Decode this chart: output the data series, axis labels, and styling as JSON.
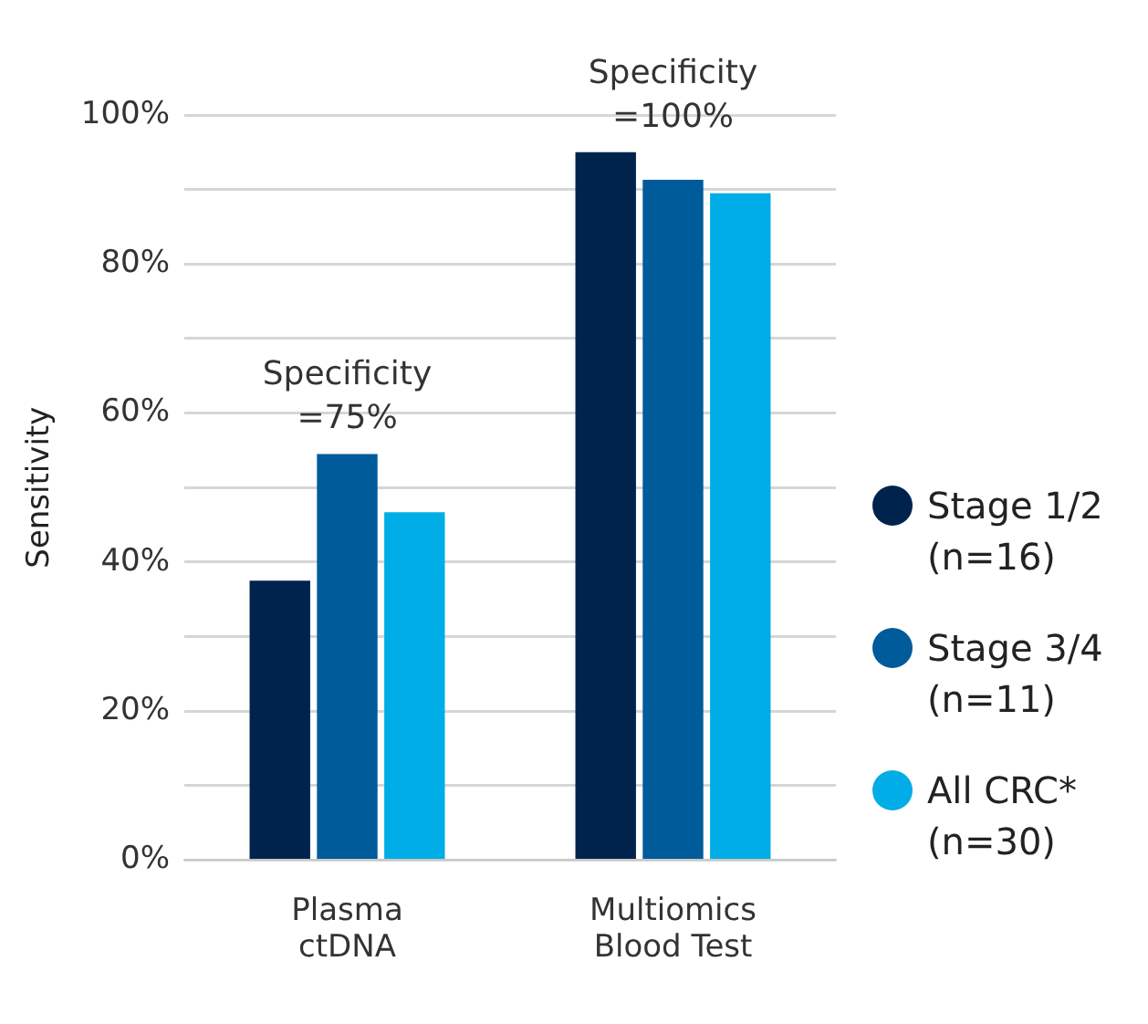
{
  "chart_data": {
    "type": "bar",
    "ylabel": "Sensitivity",
    "categories": [
      "Plasma ctDNA",
      "Multiomics Blood Test"
    ],
    "series": [
      {
        "name": "Stage 1/2 (n=16)",
        "color": "#00234d",
        "values": [
          37.5,
          95
        ]
      },
      {
        "name": "Stage 3/4 (n=11)",
        "color": "#005b9b",
        "values": [
          54.5,
          91.3
        ]
      },
      {
        "name": "All CRC* (n=30)",
        "color": "#00ade6",
        "values": [
          46.7,
          89.5
        ]
      }
    ],
    "ylim": [
      0,
      100
    ],
    "yticks": [
      {
        "value": 0,
        "label": "0%"
      },
      {
        "value": 10,
        "label": null
      },
      {
        "value": 20,
        "label": "20%"
      },
      {
        "value": 30,
        "label": null
      },
      {
        "value": 40,
        "label": "40%"
      },
      {
        "value": 50,
        "label": null
      },
      {
        "value": 60,
        "label": "60%"
      },
      {
        "value": 70,
        "label": null
      },
      {
        "value": 80,
        "label": "80%"
      },
      {
        "value": 90,
        "label": null
      },
      {
        "value": 100,
        "label": "100%"
      }
    ],
    "grid": "y",
    "legend": "right",
    "marker": "circle",
    "annotations": [
      "Specificity =75%",
      "Specificity =100%"
    ]
  }
}
